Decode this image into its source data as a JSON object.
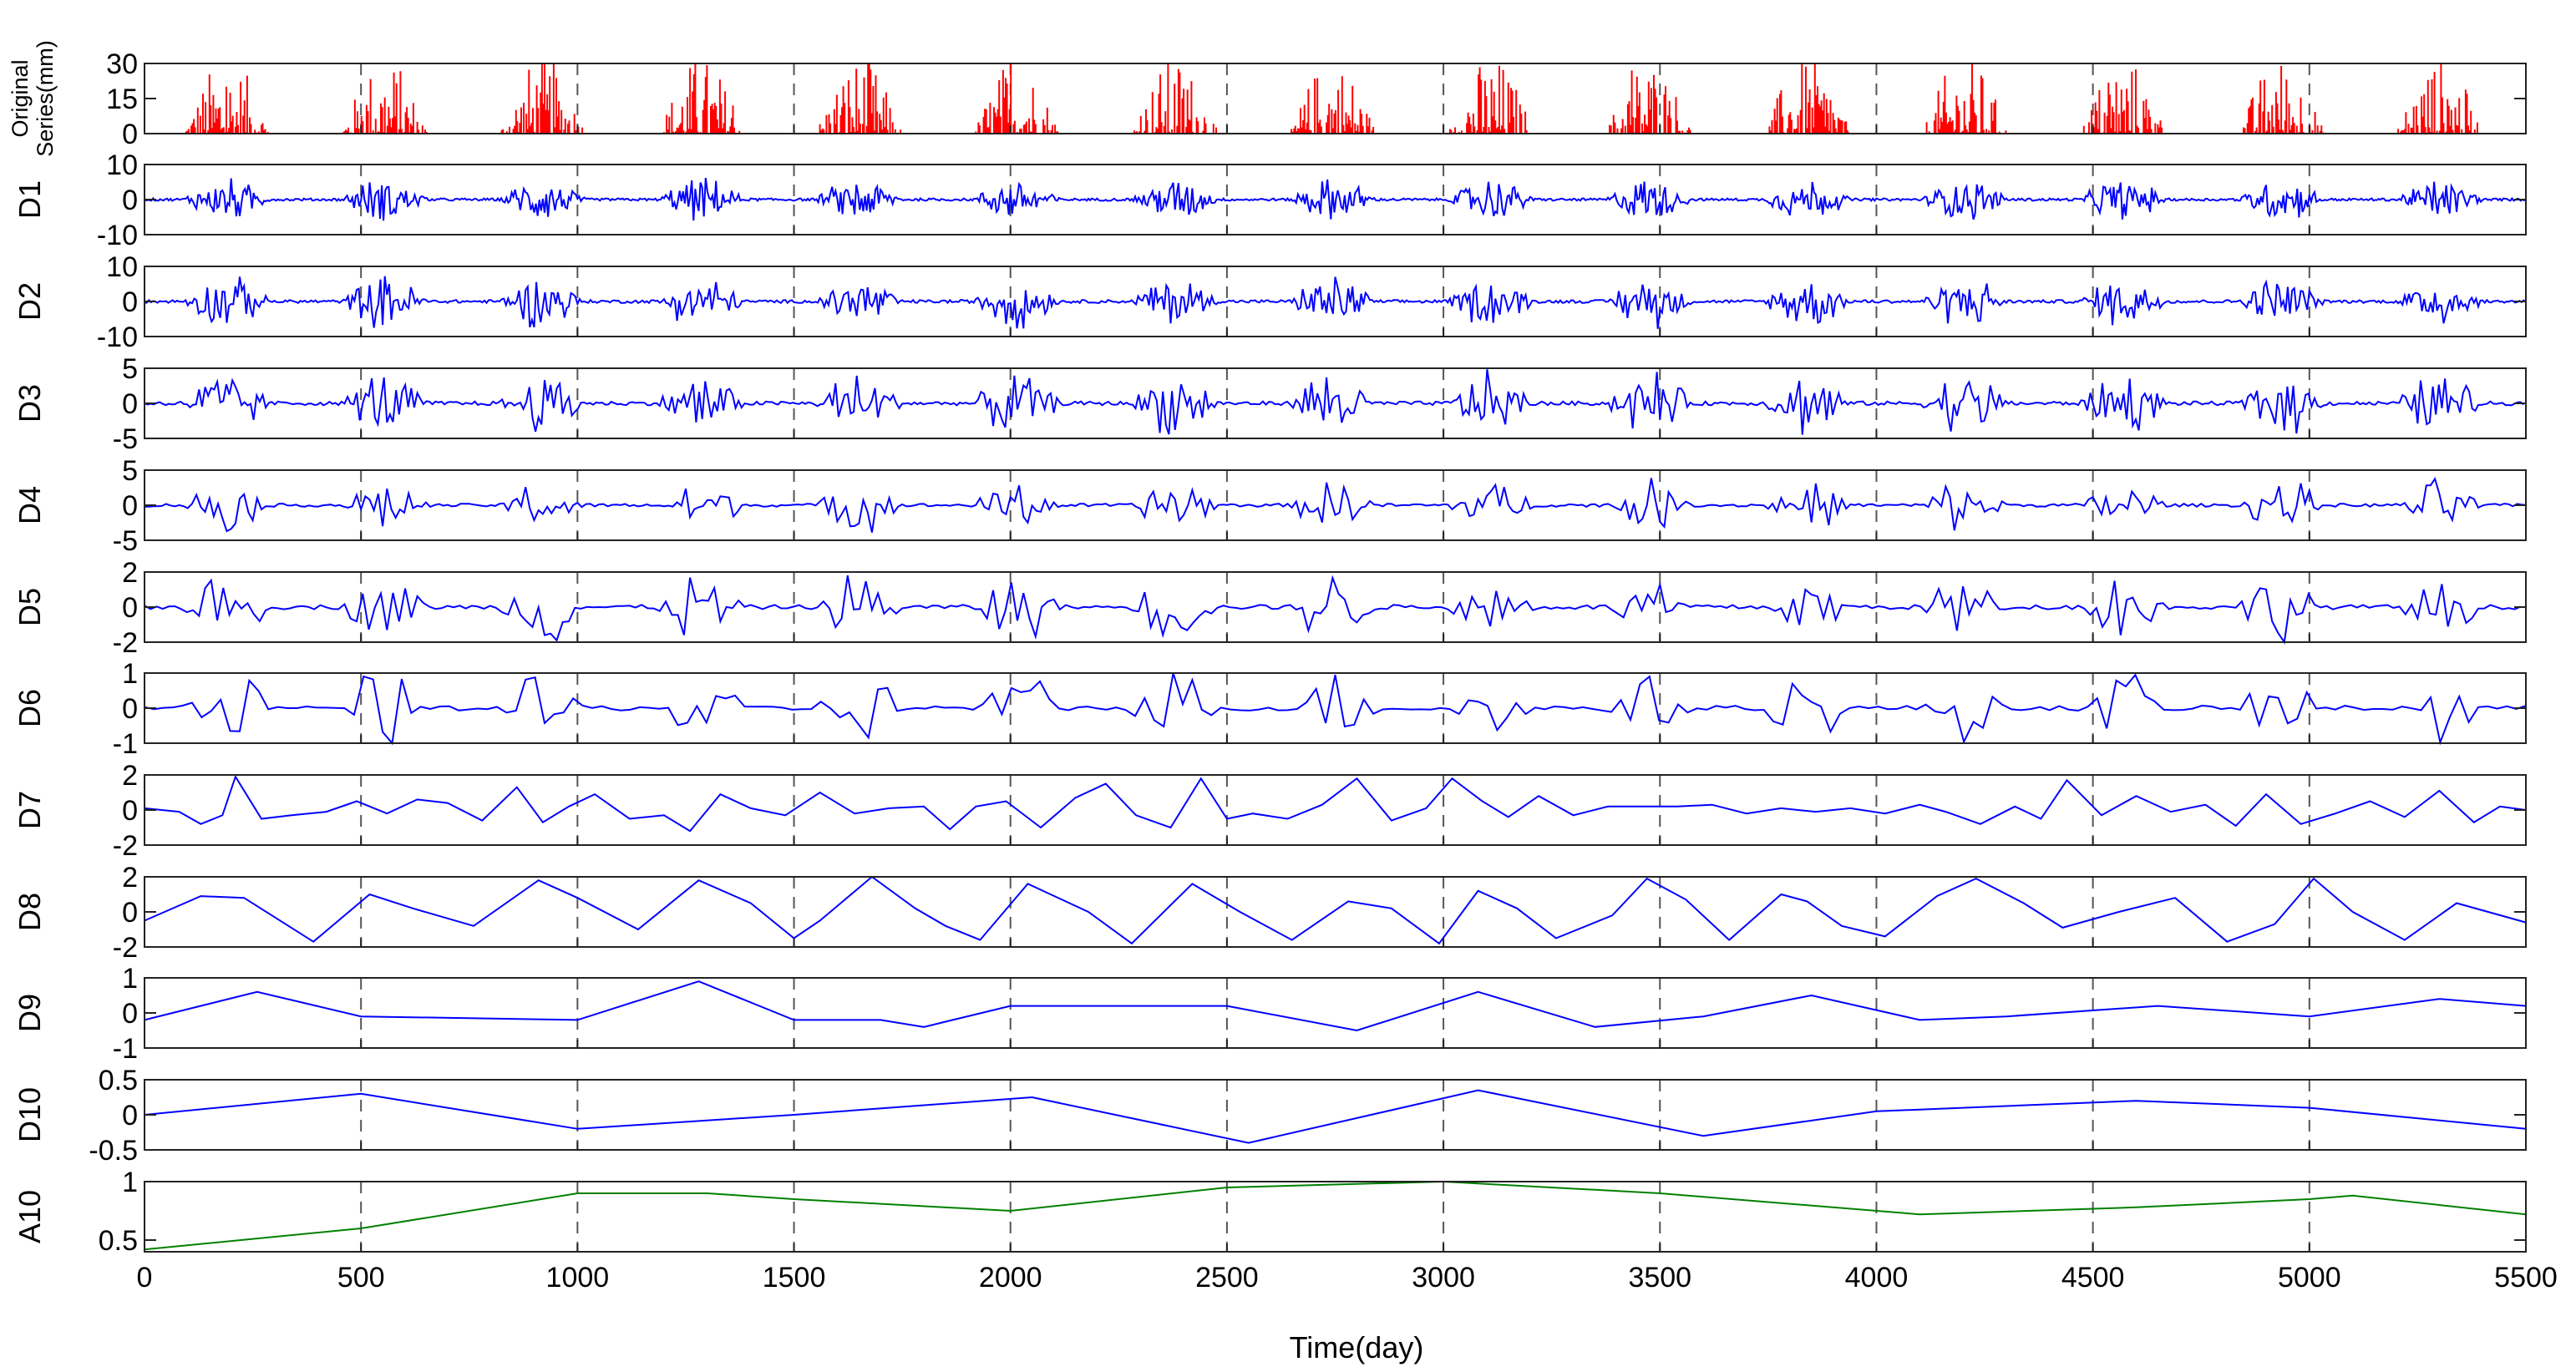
{
  "chart_data": {
    "type": "line",
    "xlabel": "Time(day)",
    "xlim": [
      0,
      5500
    ],
    "xticks": [
      0,
      500,
      1000,
      1500,
      2000,
      2500,
      3000,
      3500,
      4000,
      4500,
      5000,
      5500
    ],
    "grid": "vertical dashed lines at x ticks",
    "panels": [
      {
        "id": "original",
        "ylabel": [
          "Original",
          "Series(mm)"
        ],
        "ylim": [
          0,
          30
        ],
        "yticks": [
          0,
          15,
          30
        ],
        "color": "#ff0000",
        "style": "spikes",
        "note": "daily series, annual wet-season bursts reaching ~30 mm"
      },
      {
        "id": "d1",
        "ylabel": [
          "D1"
        ],
        "ylim": [
          -10,
          10
        ],
        "yticks": [
          -10,
          0,
          10
        ],
        "color": "#0000ff",
        "style": "noise",
        "amp": 4.5
      },
      {
        "id": "d2",
        "ylabel": [
          "D2"
        ],
        "ylim": [
          -10,
          10
        ],
        "yticks": [
          -10,
          0,
          10
        ],
        "color": "#0000ff",
        "style": "noise",
        "amp": 5.5
      },
      {
        "id": "d3",
        "ylabel": [
          "D3"
        ],
        "ylim": [
          -5,
          5
        ],
        "yticks": [
          -5,
          0,
          5
        ],
        "color": "#0000ff",
        "style": "noise",
        "amp": 3.5
      },
      {
        "id": "d4",
        "ylabel": [
          "D4"
        ],
        "ylim": [
          -5,
          5
        ],
        "yticks": [
          -5,
          0,
          5
        ],
        "color": "#0000ff",
        "style": "noise",
        "amp": 2.8
      },
      {
        "id": "d5",
        "ylabel": [
          "D5"
        ],
        "ylim": [
          -2,
          2
        ],
        "yticks": [
          -2,
          0,
          2
        ],
        "color": "#0000ff",
        "style": "noise",
        "amp": 1.6
      },
      {
        "id": "d6",
        "ylabel": [
          "D6"
        ],
        "ylim": [
          -1,
          1
        ],
        "yticks": [
          -1,
          0,
          1
        ],
        "color": "#0000ff",
        "style": "noise",
        "amp": 0.9
      },
      {
        "id": "d7",
        "ylabel": [
          "D7"
        ],
        "ylim": [
          -2,
          2
        ],
        "yticks": [
          -2,
          0,
          2
        ],
        "color": "#0000ff",
        "style": "line",
        "x": [
          0,
          80,
          130,
          180,
          210,
          270,
          340,
          420,
          490,
          560,
          630,
          700,
          780,
          860,
          920,
          980,
          1040,
          1120,
          1200,
          1260,
          1330,
          1400,
          1480,
          1560,
          1640,
          1720,
          1800,
          1860,
          1920,
          1990,
          2070,
          2150,
          2220,
          2290,
          2370,
          2440,
          2500,
          2560,
          2640,
          2720,
          2800,
          2880,
          2960,
          3020,
          3090,
          3150,
          3220,
          3300,
          3380,
          3460,
          3540,
          3620,
          3700,
          3780,
          3860,
          3940,
          4020,
          4100,
          4160,
          4240,
          4320,
          4380,
          4440,
          4520,
          4600,
          4680,
          4760,
          4830,
          4900,
          4980,
          5060,
          5140,
          5220,
          5300,
          5380,
          5440,
          5500
        ],
        "y": [
          0.1,
          -0.1,
          -0.8,
          -0.3,
          1.9,
          -0.5,
          -0.3,
          -0.1,
          0.5,
          -0.2,
          0.6,
          0.4,
          -0.6,
          1.3,
          -0.7,
          0.2,
          0.9,
          -0.5,
          -0.3,
          -1.2,
          0.9,
          0.1,
          -0.3,
          1.0,
          -0.2,
          0.1,
          0.2,
          -1.1,
          0.2,
          0.5,
          -1.0,
          0.7,
          1.5,
          -0.3,
          -1.0,
          1.8,
          -0.5,
          -0.2,
          -0.5,
          0.3,
          1.8,
          -0.6,
          0.1,
          1.8,
          0.5,
          -0.4,
          0.8,
          -0.3,
          0.2,
          0.2,
          0.2,
          0.3,
          -0.2,
          0.1,
          -0.1,
          0.1,
          -0.2,
          0.3,
          -0.1,
          -0.8,
          0.2,
          -0.5,
          1.7,
          -0.3,
          0.8,
          -0.1,
          0.3,
          -0.9,
          0.9,
          -0.8,
          -0.2,
          0.5,
          -0.4,
          1.1,
          -0.7,
          0.2,
          0.0
        ]
      },
      {
        "id": "d8",
        "ylabel": [
          "D8"
        ],
        "ylim": [
          -2,
          2
        ],
        "yticks": [
          -2,
          0,
          2
        ],
        "color": "#0000ff",
        "style": "line",
        "x": [
          0,
          130,
          230,
          390,
          520,
          620,
          760,
          910,
          1000,
          1140,
          1280,
          1400,
          1500,
          1560,
          1680,
          1780,
          1850,
          1930,
          2040,
          2180,
          2280,
          2420,
          2530,
          2650,
          2780,
          2880,
          2990,
          3080,
          3170,
          3260,
          3390,
          3470,
          3560,
          3660,
          3780,
          3840,
          3920,
          4020,
          4140,
          4230,
          4340,
          4430,
          4560,
          4690,
          4810,
          4920,
          5010,
          5100,
          5220,
          5340,
          5500
        ],
        "y": [
          -0.5,
          0.9,
          0.8,
          -1.7,
          1.0,
          0.2,
          -0.8,
          1.8,
          0.8,
          -1.0,
          1.8,
          0.5,
          -1.5,
          -0.5,
          2.0,
          0.2,
          -0.8,
          -1.6,
          1.6,
          0.0,
          -1.8,
          1.6,
          0.0,
          -1.6,
          0.6,
          0.2,
          -1.8,
          1.2,
          0.2,
          -1.5,
          -0.2,
          1.9,
          0.7,
          -1.6,
          1.0,
          0.6,
          -0.8,
          -1.4,
          0.9,
          1.9,
          0.5,
          -0.9,
          0.0,
          0.8,
          -1.7,
          -0.7,
          1.9,
          0.0,
          -1.6,
          0.5,
          -0.6
        ]
      },
      {
        "id": "d9",
        "ylabel": [
          "D9"
        ],
        "ylim": [
          -1,
          1
        ],
        "yticks": [
          -1,
          0,
          1
        ],
        "color": "#0000ff",
        "style": "line",
        "x": [
          0,
          260,
          500,
          1000,
          1280,
          1500,
          1700,
          1800,
          2000,
          2500,
          2800,
          3080,
          3350,
          3600,
          3850,
          4100,
          4300,
          4650,
          5000,
          5300,
          5500
        ],
        "y": [
          -0.2,
          0.6,
          -0.1,
          -0.2,
          0.9,
          -0.2,
          -0.2,
          -0.4,
          0.2,
          0.2,
          -0.5,
          0.6,
          -0.4,
          -0.1,
          0.5,
          -0.2,
          -0.1,
          0.2,
          -0.1,
          0.4,
          0.2
        ]
      },
      {
        "id": "d10",
        "ylabel": [
          "D10"
        ],
        "ylim": [
          -0.5,
          0.5
        ],
        "yticks": [
          -0.5,
          0,
          0.5
        ],
        "color": "#0000ff",
        "style": "line",
        "x": [
          0,
          500,
          1000,
          1500,
          2050,
          2550,
          3080,
          3600,
          4000,
          4600,
          5000,
          5500
        ],
        "y": [
          0.0,
          0.3,
          -0.2,
          0.0,
          0.25,
          -0.4,
          0.35,
          -0.3,
          0.05,
          0.2,
          0.1,
          -0.2
        ]
      },
      {
        "id": "a10",
        "ylabel": [
          "A10"
        ],
        "ylim": [
          0.4,
          1
        ],
        "yticks": [
          0.5,
          1
        ],
        "color": "#008000",
        "style": "line",
        "x": [
          0,
          500,
          1000,
          1300,
          1500,
          2000,
          2500,
          3000,
          3500,
          4100,
          4600,
          5000,
          5100,
          5500
        ],
        "y": [
          0.42,
          0.6,
          0.9,
          0.9,
          0.85,
          0.75,
          0.95,
          1.0,
          0.9,
          0.72,
          0.78,
          0.85,
          0.88,
          0.72
        ]
      }
    ]
  }
}
